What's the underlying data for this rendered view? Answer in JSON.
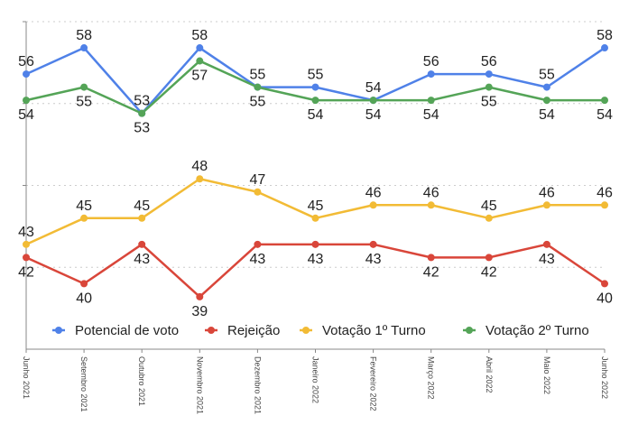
{
  "chart_data": {
    "type": "line",
    "title": "",
    "xlabel": "",
    "ylabel": "",
    "ylim": [
      35,
      60
    ],
    "gridlines": [
      60,
      53.75,
      47.5,
      41.25
    ],
    "grid": true,
    "legend_position": "bottom-inside",
    "categories": [
      "Junho 2021",
      "Setembro 2021",
      "Outubro 2021",
      "Novembro 2021",
      "Dezembro 2021",
      "Janeiro 2022",
      "Fevereiro 2022",
      "Março 2022",
      "Abril 2022",
      "Maio 2022",
      "Junho 2022"
    ],
    "series": [
      {
        "name": "Potencial de voto",
        "color": "#4f81e8",
        "values": [
          56,
          58,
          53,
          58,
          55,
          55,
          54,
          56,
          56,
          55,
          58
        ],
        "label_positions": [
          "above",
          "above",
          "above",
          "above",
          "above",
          "above",
          "above",
          "above",
          "above",
          "above",
          "above"
        ]
      },
      {
        "name": "Rejeição",
        "color": "#d9463a",
        "values": [
          42,
          40,
          43,
          39,
          43,
          43,
          43,
          42,
          42,
          43,
          40
        ],
        "label_positions": [
          "below",
          "below",
          "below",
          "below",
          "below",
          "below",
          "below",
          "below",
          "below",
          "below",
          "below"
        ]
      },
      {
        "name": "Votação 1º Turno",
        "color": "#f2bb35",
        "values": [
          43,
          45,
          45,
          48,
          47,
          45,
          46,
          46,
          45,
          46,
          46
        ],
        "label_positions": [
          "above",
          "above",
          "above",
          "above",
          "above",
          "above",
          "above",
          "above",
          "above",
          "above",
          "above"
        ]
      },
      {
        "name": "Votação 2º Turno",
        "color": "#54a457",
        "values": [
          54,
          55,
          53,
          57,
          55,
          54,
          54,
          54,
          55,
          54,
          54
        ],
        "label_positions": [
          "below",
          "below",
          "below",
          "below",
          "below",
          "below",
          "below",
          "below",
          "below",
          "below",
          "below"
        ]
      }
    ]
  }
}
